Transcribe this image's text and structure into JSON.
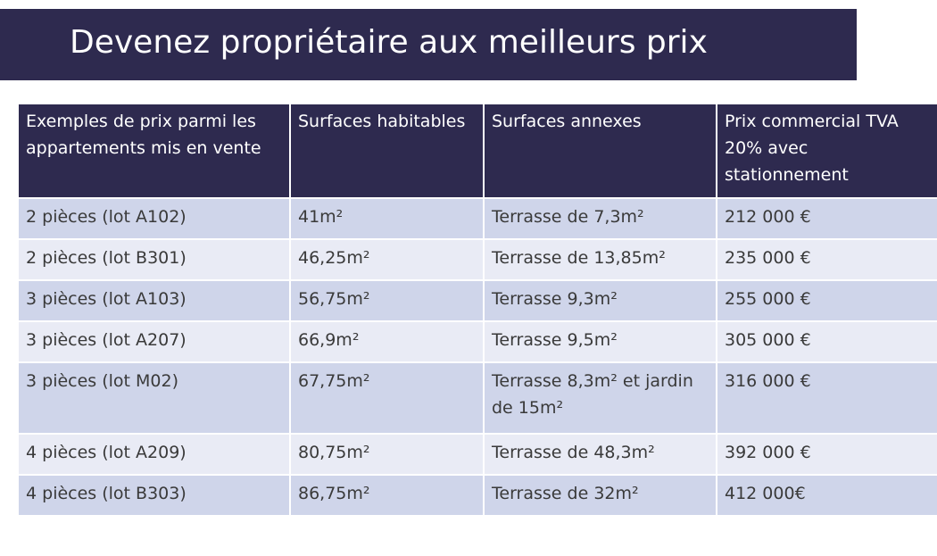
{
  "title": "Devenez propriétaire aux meilleurs prix",
  "table": {
    "headers": [
      "Exemples de prix parmi les appartements mis en vente",
      "Surfaces habitables",
      "Surfaces annexes",
      "Prix commercial TVA 20% avec stationnement"
    ],
    "rows": [
      [
        "2 pièces (lot A102)",
        "41m²",
        "Terrasse de 7,3m²",
        "212 000 €"
      ],
      [
        "2 pièces (lot B301)",
        "46,25m²",
        "Terrasse de 13,85m²",
        "235 000 €"
      ],
      [
        "3 pièces (lot A103)",
        "56,75m²",
        "Terrasse 9,3m²",
        "255 000 €"
      ],
      [
        "3 pièces  (lot A207)",
        "66,9m²",
        "Terrasse 9,5m²",
        "305 000 €"
      ],
      [
        "3 pièces (lot M02)",
        "67,75m²",
        "Terrasse 8,3m² et jardin de 15m²",
        "316 000 €"
      ],
      [
        "4 pièces (lot A209)",
        "80,75m²",
        "Terrasse de 48,3m²",
        "392 000 €"
      ],
      [
        "4 pièces (lot B303)",
        "86,75m²",
        "Terrasse de 32m²",
        "412 000€"
      ]
    ]
  },
  "colors": {
    "header_background": "#2e2a4f",
    "row_dark": "#cfd5ea",
    "row_light": "#e9ebf5"
  }
}
